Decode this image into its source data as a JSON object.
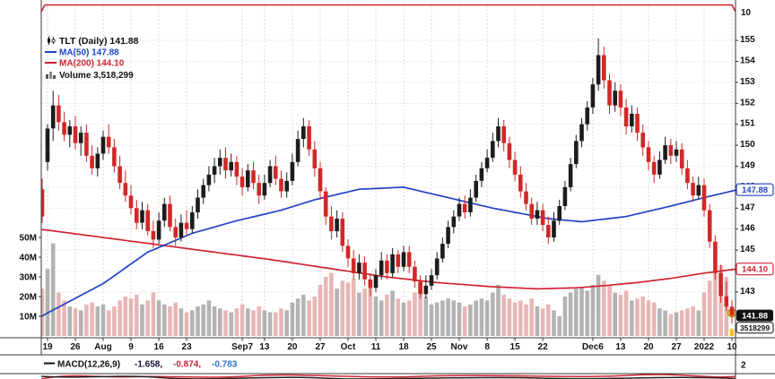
{
  "legend": {
    "symbol_text": "TLT (Daily) 141.88",
    "ma50_text": "MA(50) 147.88",
    "ma200_text": "MA(200) 144.10",
    "volume_text": "Volume 3,518,299"
  },
  "badges": {
    "ma50": "147.88",
    "ma200": "144.10",
    "last": "141.88",
    "volume": "3518299"
  },
  "axis_extras": {
    "top_right": "10",
    "bottom_right": "2"
  },
  "macd": {
    "label": "MACD(12,26,9)",
    "value1": "-1.658,",
    "value2": "-0.874,",
    "value3": "-0.783"
  },
  "colors": {
    "candle_up": "#1c1c1c",
    "candle_down": "#d02828",
    "vol_up": "#9a9a9a",
    "vol_down": "#e09d9d",
    "ma50": "#2044c4",
    "ma200": "#d02433",
    "macd_v1": "#111133",
    "macd_v2": "#cc2233",
    "macd_v3": "#2f6fd6",
    "badge_last_bg": "#111111",
    "highlight": "#f5c518"
  },
  "chart_data": {
    "type": "candlestick",
    "symbol": "TLT",
    "timeframe": "Daily",
    "last_price": 141.88,
    "ma50_last": 147.88,
    "ma200_last": 144.1,
    "last_volume": 3518299,
    "macd_values": [
      -1.658,
      -0.874,
      -0.783
    ],
    "price_grid": [
      143,
      144,
      145,
      146,
      147,
      148,
      149,
      150,
      151,
      152,
      153,
      154,
      155
    ],
    "price_labels": [
      143,
      145,
      146,
      147,
      148,
      149,
      150,
      151,
      152,
      153,
      154,
      155
    ],
    "volume_ticks": [
      {
        "label": "50M",
        "v": 50
      },
      {
        "label": "40M",
        "v": 40
      },
      {
        "label": "30M",
        "v": 30
      },
      {
        "label": "20M",
        "v": 20
      },
      {
        "label": "10M",
        "v": 10
      }
    ],
    "x_ticks": [
      {
        "i": 0,
        "label": "19"
      },
      {
        "i": 5,
        "label": "26"
      },
      {
        "i": 10,
        "label": "Aug"
      },
      {
        "i": 15,
        "label": "9"
      },
      {
        "i": 20,
        "label": "16"
      },
      {
        "i": 25,
        "label": "23"
      },
      {
        "i": 35,
        "label": "Sep7"
      },
      {
        "i": 39,
        "label": "13"
      },
      {
        "i": 44,
        "label": "20"
      },
      {
        "i": 49,
        "label": "27"
      },
      {
        "i": 54,
        "label": "Oct"
      },
      {
        "i": 59,
        "label": "11"
      },
      {
        "i": 64,
        "label": "18"
      },
      {
        "i": 69,
        "label": "25"
      },
      {
        "i": 74,
        "label": "Nov"
      },
      {
        "i": 79,
        "label": "8"
      },
      {
        "i": 84,
        "label": "15"
      },
      {
        "i": 89,
        "label": "22"
      },
      {
        "i": 98,
        "label": "Dec6"
      },
      {
        "i": 103,
        "label": "13"
      },
      {
        "i": 108,
        "label": "20"
      },
      {
        "i": 113,
        "label": "27"
      },
      {
        "i": 118,
        "label": "2022"
      },
      {
        "i": 123,
        "label": "10"
      }
    ],
    "edge_candle": [
      147.9,
      148.4,
      146.3,
      146.6,
      24
    ],
    "ma50_anchors": [
      [
        -2,
        141.7
      ],
      [
        0,
        142.0
      ],
      [
        10,
        143.4
      ],
      [
        18,
        144.9
      ],
      [
        26,
        145.8
      ],
      [
        34,
        146.4
      ],
      [
        42,
        146.9
      ],
      [
        48,
        147.4
      ],
      [
        56,
        147.9
      ],
      [
        64,
        148.0
      ],
      [
        72,
        147.5
      ],
      [
        80,
        147.0
      ],
      [
        90,
        146.5
      ],
      [
        96,
        146.35
      ],
      [
        104,
        146.6
      ],
      [
        112,
        147.1
      ],
      [
        118,
        147.5
      ],
      [
        124,
        147.88
      ]
    ],
    "ma200_anchors": [
      [
        -2,
        146.0
      ],
      [
        0,
        145.95
      ],
      [
        10,
        145.6
      ],
      [
        20,
        145.25
      ],
      [
        30,
        144.9
      ],
      [
        40,
        144.55
      ],
      [
        50,
        144.15
      ],
      [
        60,
        143.75
      ],
      [
        70,
        143.45
      ],
      [
        80,
        143.25
      ],
      [
        88,
        143.15
      ],
      [
        95,
        143.2
      ],
      [
        100,
        143.3
      ],
      [
        106,
        143.45
      ],
      [
        112,
        143.65
      ],
      [
        118,
        143.9
      ],
      [
        124,
        144.1
      ]
    ],
    "candles": [
      [
        149.2,
        151.0,
        148.8,
        150.8,
        34
      ],
      [
        150.8,
        152.6,
        150.2,
        151.9,
        47
      ],
      [
        151.9,
        152.4,
        150.7,
        151.1,
        22
      ],
      [
        151.1,
        151.6,
        150.2,
        150.5,
        18
      ],
      [
        150.5,
        151.2,
        149.9,
        150.9,
        15
      ],
      [
        150.9,
        151.4,
        149.8,
        150.1,
        14
      ],
      [
        150.1,
        150.9,
        149.5,
        150.6,
        13
      ],
      [
        150.6,
        151.0,
        149.2,
        149.5,
        16
      ],
      [
        149.5,
        150.0,
        148.6,
        148.9,
        17
      ],
      [
        148.9,
        149.9,
        148.5,
        149.6,
        15
      ],
      [
        149.6,
        150.7,
        149.3,
        150.4,
        16
      ],
      [
        150.4,
        151.0,
        149.6,
        149.9,
        13
      ],
      [
        149.9,
        150.3,
        148.7,
        149.0,
        15
      ],
      [
        149.0,
        149.5,
        147.9,
        148.2,
        18
      ],
      [
        148.2,
        148.8,
        147.3,
        147.6,
        20
      ],
      [
        147.6,
        148.1,
        146.7,
        147.0,
        19
      ],
      [
        147.0,
        147.4,
        146.0,
        146.3,
        21
      ],
      [
        146.3,
        147.3,
        146.0,
        146.9,
        16
      ],
      [
        146.9,
        147.2,
        145.7,
        145.9,
        18
      ],
      [
        145.9,
        146.4,
        145.1,
        145.5,
        22
      ],
      [
        145.5,
        146.8,
        145.3,
        146.4,
        18
      ],
      [
        146.4,
        147.5,
        146.1,
        147.2,
        16
      ],
      [
        147.2,
        147.6,
        145.9,
        146.1,
        15
      ],
      [
        146.1,
        146.5,
        145.2,
        145.6,
        17
      ],
      [
        145.6,
        146.7,
        145.4,
        146.3,
        14
      ],
      [
        146.3,
        146.9,
        145.7,
        146.0,
        12
      ],
      [
        146.0,
        147.1,
        145.8,
        146.8,
        13
      ],
      [
        146.8,
        147.9,
        146.5,
        147.5,
        15
      ],
      [
        147.5,
        148.4,
        147.2,
        148.1,
        16
      ],
      [
        148.1,
        149.0,
        147.8,
        148.6,
        18
      ],
      [
        148.6,
        149.4,
        148.2,
        149.0,
        15
      ],
      [
        149.0,
        149.8,
        148.6,
        149.4,
        14
      ],
      [
        149.4,
        149.9,
        148.4,
        148.8,
        13
      ],
      [
        148.8,
        149.6,
        148.5,
        149.2,
        12
      ],
      [
        149.2,
        149.5,
        148.1,
        148.5,
        14
      ],
      [
        148.5,
        148.9,
        147.6,
        148.0,
        16
      ],
      [
        148.0,
        149.1,
        147.8,
        148.8,
        14
      ],
      [
        148.8,
        149.2,
        147.9,
        148.2,
        13
      ],
      [
        148.2,
        148.6,
        147.2,
        147.6,
        15
      ],
      [
        147.6,
        148.6,
        147.4,
        148.2,
        13
      ],
      [
        148.2,
        149.3,
        148.0,
        149.0,
        12
      ],
      [
        149.0,
        149.5,
        148.1,
        148.4,
        12
      ],
      [
        148.4,
        148.8,
        147.5,
        147.8,
        14
      ],
      [
        147.8,
        148.7,
        147.5,
        148.3,
        13
      ],
      [
        148.3,
        149.6,
        148.1,
        149.2,
        17
      ],
      [
        149.2,
        150.7,
        149.0,
        150.3,
        19
      ],
      [
        150.3,
        151.3,
        149.9,
        150.9,
        21
      ],
      [
        150.9,
        151.2,
        149.5,
        149.8,
        18
      ],
      [
        149.8,
        150.2,
        148.5,
        148.9,
        20
      ],
      [
        148.9,
        149.2,
        147.4,
        147.8,
        26
      ],
      [
        147.8,
        148.0,
        146.2,
        146.6,
        30
      ],
      [
        146.6,
        147.1,
        145.5,
        145.9,
        32
      ],
      [
        145.9,
        146.9,
        145.6,
        146.5,
        24
      ],
      [
        146.5,
        146.8,
        144.9,
        145.2,
        28
      ],
      [
        145.2,
        145.5,
        144.2,
        144.6,
        27
      ],
      [
        144.6,
        145.0,
        143.6,
        143.9,
        29
      ],
      [
        143.9,
        144.8,
        143.6,
        144.4,
        22
      ],
      [
        144.4,
        144.7,
        143.3,
        143.6,
        24
      ],
      [
        143.6,
        143.9,
        142.8,
        143.2,
        26
      ],
      [
        143.2,
        144.1,
        143.0,
        143.8,
        20
      ],
      [
        143.8,
        144.9,
        143.6,
        144.5,
        18
      ],
      [
        144.5,
        144.8,
        143.6,
        143.9,
        21
      ],
      [
        143.9,
        145.1,
        143.7,
        144.8,
        23
      ],
      [
        144.8,
        145.0,
        143.9,
        144.2,
        19
      ],
      [
        144.2,
        145.2,
        144.0,
        144.9,
        17
      ],
      [
        144.9,
        145.2,
        143.9,
        144.2,
        18
      ],
      [
        144.2,
        144.5,
        143.2,
        143.5,
        22
      ],
      [
        143.5,
        143.8,
        142.7,
        142.9,
        25
      ],
      [
        142.9,
        143.8,
        142.7,
        143.3,
        20
      ],
      [
        143.3,
        144.1,
        143.1,
        143.8,
        16
      ],
      [
        143.8,
        144.9,
        143.6,
        144.6,
        17
      ],
      [
        144.6,
        145.6,
        144.4,
        145.3,
        18
      ],
      [
        145.3,
        146.4,
        145.1,
        146.1,
        19
      ],
      [
        146.1,
        146.9,
        145.8,
        146.6,
        18
      ],
      [
        146.6,
        147.5,
        146.4,
        147.2,
        17
      ],
      [
        147.2,
        147.6,
        146.5,
        146.8,
        15
      ],
      [
        146.8,
        147.9,
        146.6,
        147.5,
        16
      ],
      [
        147.5,
        148.6,
        147.3,
        148.3,
        18
      ],
      [
        148.3,
        149.2,
        148.0,
        148.9,
        19
      ],
      [
        148.9,
        149.8,
        148.7,
        149.4,
        18
      ],
      [
        149.4,
        150.6,
        149.2,
        150.2,
        22
      ],
      [
        150.2,
        151.3,
        149.9,
        150.9,
        26
      ],
      [
        150.9,
        151.2,
        149.7,
        150.1,
        21
      ],
      [
        150.1,
        150.4,
        148.9,
        149.3,
        19
      ],
      [
        149.3,
        149.7,
        148.3,
        148.6,
        17
      ],
      [
        148.6,
        149.0,
        147.5,
        147.8,
        18
      ],
      [
        147.8,
        148.2,
        146.9,
        147.2,
        16
      ],
      [
        147.2,
        147.5,
        146.2,
        146.5,
        19
      ],
      [
        146.5,
        147.3,
        146.2,
        146.9,
        15
      ],
      [
        146.9,
        147.2,
        145.9,
        146.2,
        14
      ],
      [
        146.2,
        146.6,
        145.3,
        145.6,
        16
      ],
      [
        145.6,
        146.8,
        145.4,
        146.4,
        13
      ],
      [
        146.4,
        147.4,
        146.2,
        147.1,
        10
      ],
      [
        147.1,
        148.3,
        146.9,
        148.0,
        20
      ],
      [
        148.0,
        149.4,
        147.8,
        149.1,
        22
      ],
      [
        149.1,
        150.5,
        148.9,
        150.2,
        24
      ],
      [
        150.2,
        151.3,
        149.9,
        151.0,
        25
      ],
      [
        151.0,
        152.1,
        150.7,
        151.8,
        23
      ],
      [
        151.8,
        153.2,
        151.5,
        152.9,
        26
      ],
      [
        152.9,
        155.1,
        152.6,
        154.3,
        31
      ],
      [
        154.3,
        154.7,
        152.7,
        153.1,
        28
      ],
      [
        153.1,
        153.4,
        151.5,
        151.9,
        26
      ],
      [
        151.9,
        153.0,
        151.6,
        152.6,
        22
      ],
      [
        152.6,
        152.9,
        151.4,
        151.8,
        21
      ],
      [
        151.8,
        152.2,
        150.5,
        150.9,
        23
      ],
      [
        150.9,
        151.9,
        150.6,
        151.5,
        18
      ],
      [
        151.5,
        151.8,
        150.2,
        150.6,
        19
      ],
      [
        150.6,
        151.0,
        149.5,
        149.9,
        20
      ],
      [
        149.9,
        150.2,
        148.8,
        149.2,
        18
      ],
      [
        149.2,
        149.5,
        148.2,
        148.6,
        17
      ],
      [
        148.6,
        149.7,
        148.4,
        149.3,
        14
      ],
      [
        149.3,
        150.4,
        149.1,
        150.0,
        13
      ],
      [
        150.0,
        150.3,
        149.1,
        149.5,
        11
      ],
      [
        149.5,
        150.2,
        149.2,
        149.8,
        12
      ],
      [
        149.8,
        150.1,
        148.6,
        148.9,
        13
      ],
      [
        148.9,
        149.3,
        147.9,
        148.2,
        14
      ],
      [
        148.2,
        148.5,
        147.3,
        147.6,
        15
      ],
      [
        147.6,
        148.5,
        147.4,
        148.1,
        13
      ],
      [
        148.1,
        148.4,
        146.6,
        146.9,
        22
      ],
      [
        146.9,
        147.2,
        145.1,
        145.4,
        28
      ],
      [
        145.4,
        145.7,
        143.6,
        143.9,
        33
      ],
      [
        143.9,
        144.3,
        142.5,
        142.8,
        36
      ],
      [
        142.8,
        143.5,
        142.1,
        142.3,
        30
      ],
      [
        142.3,
        142.6,
        141.5,
        141.88,
        3.5
      ]
    ]
  }
}
